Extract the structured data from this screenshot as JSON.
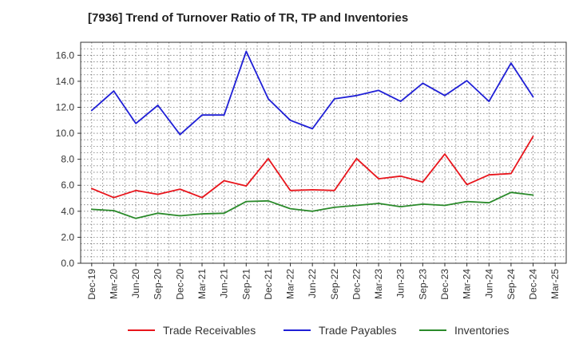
{
  "chart_data": {
    "type": "line",
    "title": "[7936]  Trend of Turnover Ratio of TR, TP and Inventories",
    "xlabel": "",
    "ylabel": "",
    "ylim": [
      0,
      17
    ],
    "yticks": [
      "0.0",
      "2.0",
      "4.0",
      "6.0",
      "8.0",
      "10.0",
      "12.0",
      "14.0",
      "16.0"
    ],
    "categories": [
      "Dec-19",
      "Mar-20",
      "Jun-20",
      "Sep-20",
      "Dec-20",
      "Mar-21",
      "Jun-21",
      "Sep-21",
      "Dec-21",
      "Mar-22",
      "Jun-22",
      "Sep-22",
      "Dec-22",
      "Mar-23",
      "Jun-23",
      "Sep-23",
      "Dec-23",
      "Mar-24",
      "Jun-24",
      "Sep-24",
      "Dec-24",
      "Mar-25"
    ],
    "grid": true,
    "legend_position": "bottom",
    "series": [
      {
        "name": "Trade Receivables",
        "color": "#e8141b",
        "values": [
          5.75,
          5.05,
          5.6,
          5.3,
          5.7,
          5.05,
          6.35,
          5.95,
          8.05,
          5.6,
          5.65,
          5.6,
          8.05,
          6.5,
          6.7,
          6.25,
          8.4,
          6.05,
          6.8,
          6.9,
          9.75,
          null
        ]
      },
      {
        "name": "Trade Payables",
        "color": "#1f1fd6",
        "values": [
          11.75,
          13.25,
          10.75,
          12.15,
          9.9,
          11.4,
          11.4,
          16.3,
          12.65,
          11.0,
          10.35,
          12.65,
          12.9,
          13.3,
          12.45,
          13.85,
          12.9,
          14.05,
          12.45,
          15.4,
          12.8,
          null
        ]
      },
      {
        "name": "Inventories",
        "color": "#2a8a2a",
        "values": [
          4.15,
          4.05,
          3.45,
          3.85,
          3.65,
          3.8,
          3.85,
          4.75,
          4.8,
          4.2,
          4.0,
          4.3,
          4.45,
          4.6,
          4.35,
          4.55,
          4.45,
          4.75,
          4.65,
          5.45,
          5.25,
          null
        ]
      }
    ]
  }
}
